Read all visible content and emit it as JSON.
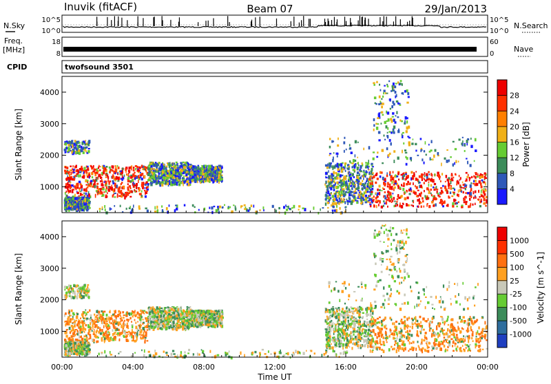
{
  "header": {
    "station": "Inuvik (fitACF)",
    "beam": "Beam 07",
    "date": "29/Jan/2013"
  },
  "noise_panel": {
    "left_label": "N.Sky",
    "right_label": "N.Search",
    "left_ticks": [
      "10^5",
      "10^0"
    ],
    "right_ticks": [
      "10^5",
      "10^0"
    ]
  },
  "freq_panel": {
    "left_label_line1": "Freq.",
    "left_label_line2": "[MHz]",
    "right_label": "Nave",
    "left_ticks": [
      "18",
      "8"
    ],
    "right_ticks": [
      "60",
      "0"
    ]
  },
  "cpid_panel": {
    "label": "CPID",
    "program": "twofsound 3501"
  },
  "chart_data": [
    {
      "type": "heatmap",
      "name": "power",
      "ylabel": "Slant Range [km]",
      "yticks": [
        "1000",
        "2000",
        "3000",
        "4000"
      ],
      "ylim": [
        180,
        4500
      ],
      "colorbar_label": "Power [dB]",
      "colorbar_ticks": [
        "4",
        "8",
        "12",
        "16",
        "20",
        "24",
        "28"
      ],
      "colors": [
        "#1a1aff",
        "#2e58b8",
        "#3c8c5a",
        "#66cc33",
        "#f0b018",
        "#ff7f00",
        "#ff3000",
        "#ee0000"
      ]
    },
    {
      "type": "heatmap",
      "name": "velocity",
      "ylabel": "Slant Range [km]",
      "yticks": [
        "1000",
        "2000",
        "3000",
        "4000"
      ],
      "ylim": [
        180,
        4500
      ],
      "colorbar_label": "Velocity [m s^-1]",
      "colorbar_ticks": [
        "1000",
        "500",
        "100",
        "25",
        "-25",
        "-100",
        "-500",
        "-1000"
      ],
      "colors": [
        "#1f3fc0",
        "#2e6e9e",
        "#3c8c5a",
        "#66cc33",
        "#c8c8b8",
        "#ffa020",
        "#ff7010",
        "#ff3000",
        "#ee0000"
      ]
    }
  ],
  "x_axis": {
    "ticks": [
      "00:00",
      "04:00",
      "08:00",
      "12:00",
      "16:00",
      "20:00",
      "00:00"
    ],
    "label": "Time UT"
  }
}
